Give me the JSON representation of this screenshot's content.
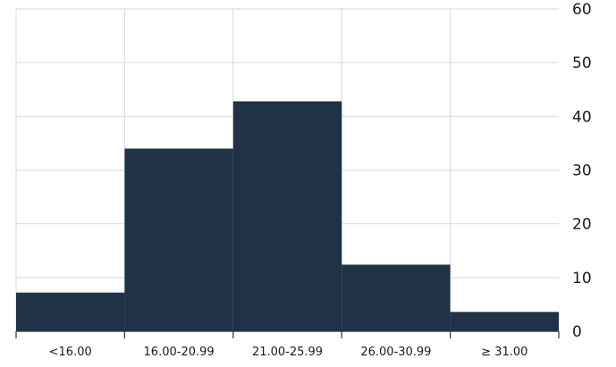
{
  "chart_data": {
    "type": "bar",
    "categories": [
      "<16.00",
      "16.00-20.99",
      "21.00-25.99",
      "26.00-30.99",
      "≥ 31.00"
    ],
    "values": [
      7.2,
      34,
      42.8,
      12.4,
      3.6
    ],
    "ylim": [
      0,
      60
    ],
    "yticks": [
      "0",
      "10",
      "20",
      "30",
      "40",
      "50",
      "60"
    ],
    "y_axis_side": "right",
    "grid": true,
    "bar_color": "#1f3246",
    "grid_color": "#d9d9d9"
  }
}
